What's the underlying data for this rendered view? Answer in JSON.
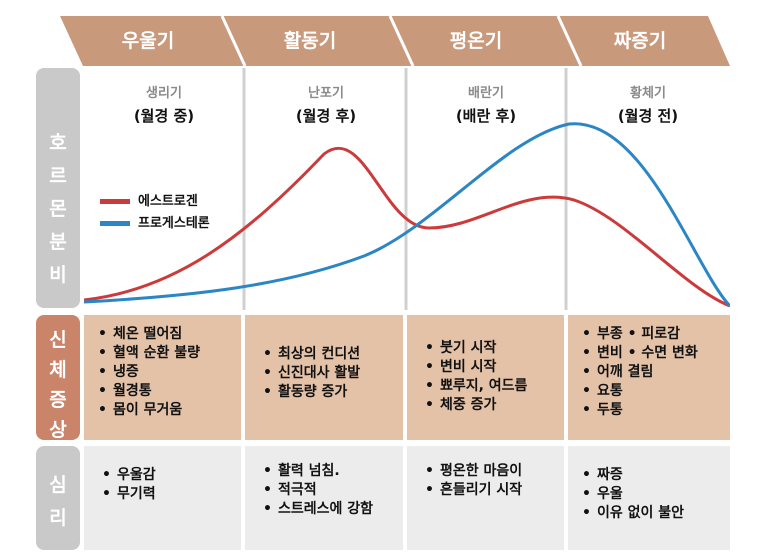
{
  "phases": [
    "우울기",
    "활동기",
    "평온기",
    "짜증기"
  ],
  "columns": [
    {
      "sub": "생리기",
      "main": "(월경 중)"
    },
    {
      "sub": "난포기",
      "main": "(월경 후)"
    },
    {
      "sub": "배란기",
      "main": "(배란 후)"
    },
    {
      "sub": "황체기",
      "main": "(월경 전)"
    }
  ],
  "rows": {
    "hormone": {
      "label": [
        "호",
        "르",
        "몬",
        "",
        "분",
        "비"
      ]
    },
    "body": {
      "label": [
        "신",
        "체",
        "증",
        "상"
      ]
    },
    "mind": {
      "label": [
        "심",
        "리"
      ]
    }
  },
  "legend": {
    "estrogen": "에스트로겐",
    "progesterone": "프로게스테론"
  },
  "body_symptoms": [
    [
      "체온 떨어짐",
      "혈액 순환 불량",
      "냉증",
      "월경통",
      "몸이 무거움"
    ],
    [
      "최상의 컨디션",
      "신진대사 활발",
      "활동량 증가"
    ],
    [
      "붓기 시작",
      "변비 시작",
      "뾰루지, 여드름",
      "체중 증가"
    ],
    [
      "부종 • 피로감",
      "변비 • 수면 변화",
      "어깨 결림",
      "요통",
      "두통"
    ]
  ],
  "mind_symptoms": [
    [
      "우울감",
      "무기력"
    ],
    [
      "활력 넘침.",
      "적극적",
      "스트레스에 강함"
    ],
    [
      "평온한 마음이",
      "흔들리기 시작"
    ],
    [
      "짜증",
      "우울",
      "이유 없이 불안"
    ]
  ],
  "colors": {
    "phase_bar": "#c9997b",
    "side_hormone": "#c9c9c9",
    "side_body": "#c9846a",
    "side_mind": "#c9c9c9",
    "cell_body": "#e3c2a8",
    "cell_mind": "#ececec",
    "estrogen": "#cc3b3b",
    "progesterone": "#2a86c4"
  }
}
